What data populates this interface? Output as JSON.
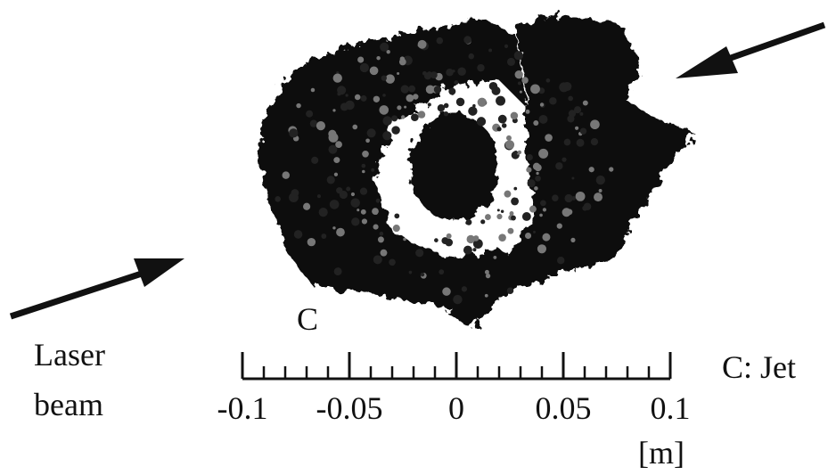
{
  "figure": {
    "label": "C",
    "caption": "C: Jet",
    "laser_label": [
      "Laser",
      "beam"
    ],
    "scale": {
      "xlim": [
        -0.1,
        0.1
      ],
      "xticks": [
        -0.1,
        -0.05,
        0,
        0.05,
        0.1
      ],
      "xminorticks": [
        -0.09,
        -0.08,
        -0.07,
        -0.06,
        -0.04,
        -0.03,
        -0.02,
        -0.01,
        0.01,
        0.02,
        0.03,
        0.04,
        0.06,
        0.07,
        0.08,
        0.09
      ],
      "unit": "[m]"
    }
  }
}
